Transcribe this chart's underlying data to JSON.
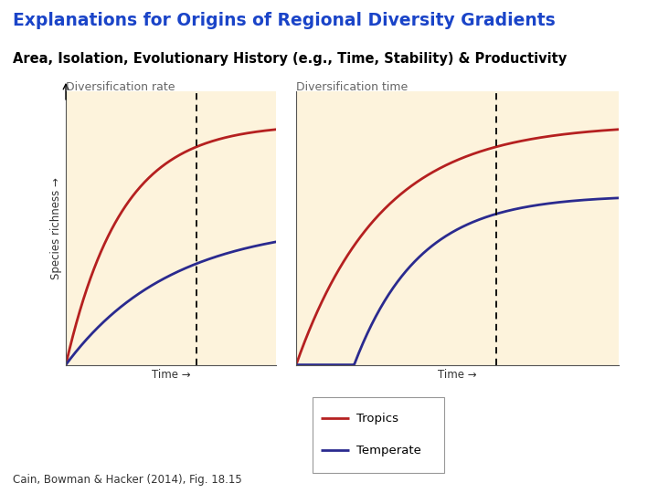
{
  "title": "Explanations for Origins of Regional Diversity Gradients",
  "subtitle": "Area, Isolation, Evolutionary History (e.g., Time, Stability) & Productivity",
  "title_color": "#1a44c8",
  "subtitle_color": "#000000",
  "panel1_title": "Diversification rate",
  "panel2_title": "Diversification time",
  "xlabel": "Time →",
  "ylabel": "Species richness →",
  "tropics_color": "#b52020",
  "temperate_color": "#2a2a8f",
  "bg_color": "#fdf3dc",
  "legend_labels": [
    "Tropics",
    "Temperate"
  ],
  "citation": "Cain, Bowman & Hacker (2014), Fig. 18.15",
  "dashed_line_x": 0.62
}
